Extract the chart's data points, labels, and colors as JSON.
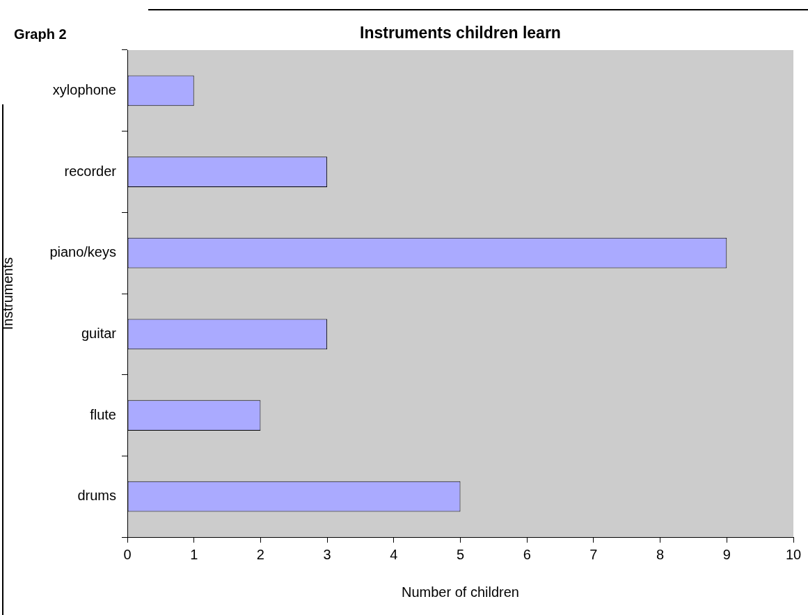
{
  "chart_data": {
    "type": "bar",
    "orientation": "horizontal",
    "title": "Instruments children learn",
    "annotations": [
      "Graph 2"
    ],
    "xlabel": "Number of children",
    "ylabel": "Instruments",
    "categories": [
      "xylophone",
      "recorder",
      "piano/keys",
      "guitar",
      "flute",
      "drums"
    ],
    "values": [
      1,
      3,
      9,
      3,
      2,
      5
    ],
    "color": "#aaaaff",
    "xlim": [
      0,
      10
    ],
    "xticks": [
      0,
      1,
      2,
      3,
      4,
      5,
      6,
      7,
      8,
      9,
      10
    ],
    "grid": false,
    "legend": false
  }
}
